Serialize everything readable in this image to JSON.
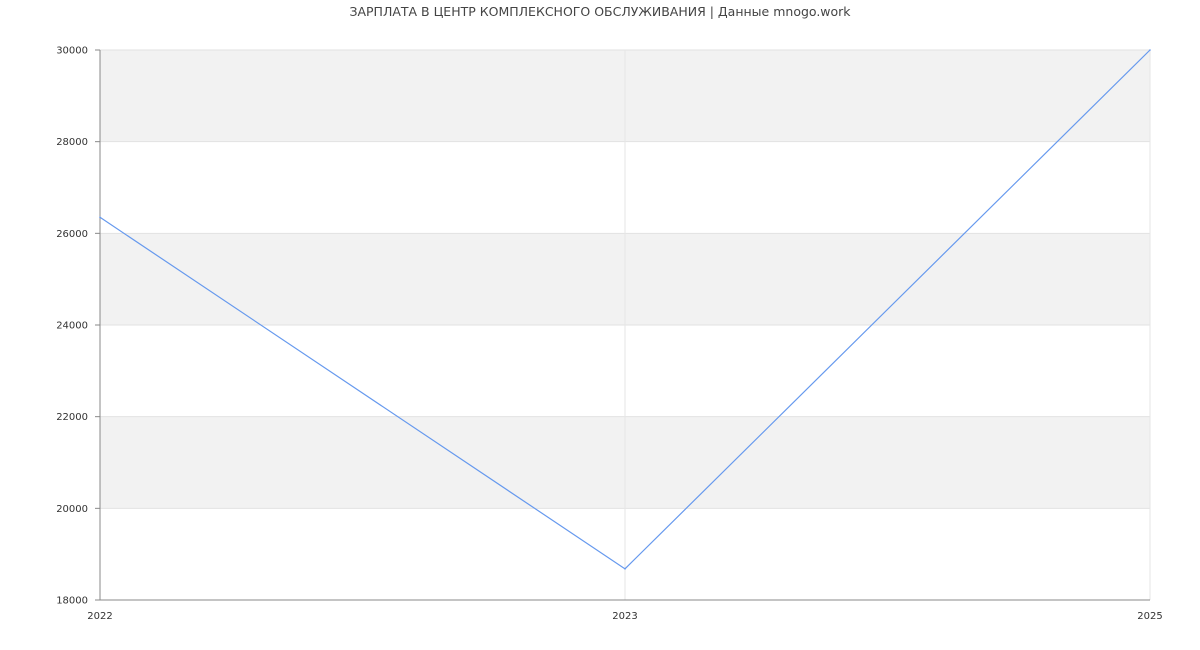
{
  "chart_data": {
    "type": "line",
    "title": "ЗАРПЛАТА В ЦЕНТР КОМПЛЕКСНОГО ОБСЛУЖИВАНИЯ | Данные mnogo.work",
    "xlabel": "",
    "ylabel": "",
    "categories": [
      "2022",
      "2023",
      "2025"
    ],
    "x_positions": [
      2022,
      2023,
      2024
    ],
    "series": [
      {
        "values": [
          26350,
          18680,
          30000
        ],
        "color": "#6699ee"
      }
    ],
    "ylim": [
      18000,
      30000
    ],
    "yticks": [
      "18000",
      "20000",
      "22000",
      "24000",
      "26000",
      "28000",
      "30000"
    ],
    "grid": true,
    "band_color": "#f2f2f2",
    "legend": "none"
  }
}
